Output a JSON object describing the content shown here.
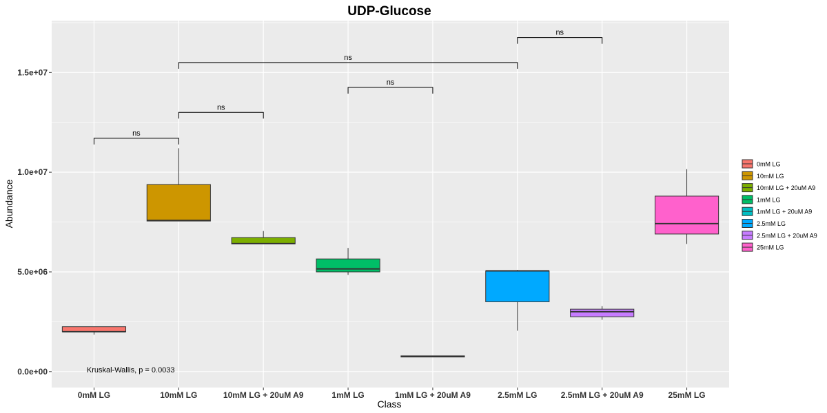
{
  "chart_data": {
    "type": "boxplot",
    "title": "UDP-Glucose",
    "xlabel": "Class",
    "ylabel": "Abundance",
    "ylim": [
      -800000,
      17600000
    ],
    "yticks": [
      0,
      5000000,
      10000000,
      15000000
    ],
    "ytick_labels": [
      "0.0e+00",
      "5.0e+06",
      "1.0e+07",
      "1.5e+07"
    ],
    "grid": true,
    "legend_position": "right",
    "categories": [
      "0mM LG",
      "10mM LG",
      "10mM LG + 20uM A9",
      "1mM LG",
      "1mM LG + 20uM A9",
      "2.5mM LG",
      "2.5mM LG + 20uM A9",
      "25mM LG"
    ],
    "boxes": [
      {
        "name": "0mM LG",
        "color": "#F8766D",
        "min": 1850000,
        "q1": 2000000,
        "median": 2000000,
        "q3": 2250000,
        "max": 2250000
      },
      {
        "name": "10mM LG",
        "color": "#CD9600",
        "min": 7550000,
        "q1": 7550000,
        "median": 7580000,
        "q3": 9380000,
        "max": 11200000
      },
      {
        "name": "10mM LG + 20uM A9",
        "color": "#7CAE00",
        "min": 6400000,
        "q1": 6400000,
        "median": 6420000,
        "q3": 6720000,
        "max": 7050000
      },
      {
        "name": "1mM LG",
        "color": "#00BE67",
        "min": 4850000,
        "q1": 5000000,
        "median": 5150000,
        "q3": 5650000,
        "max": 6200000
      },
      {
        "name": "1mM LG + 20uM A9",
        "color": "#00BFC4",
        "min": 730000,
        "q1": 730000,
        "median": 760000,
        "q3": 790000,
        "max": 790000
      },
      {
        "name": "2.5mM LG",
        "color": "#00A9FF",
        "min": 2050000,
        "q1": 3500000,
        "median": 5050000,
        "q3": 5050000,
        "max": 5100000
      },
      {
        "name": "2.5mM LG + 20uM A9",
        "color": "#C77CFF",
        "min": 2600000,
        "q1": 2750000,
        "median": 3000000,
        "q3": 3130000,
        "max": 3280000
      },
      {
        "name": "25mM LG",
        "color": "#FF61CC",
        "min": 6400000,
        "q1": 6900000,
        "median": 7420000,
        "q3": 8800000,
        "max": 10150000
      }
    ],
    "comparisons": [
      {
        "from": 0,
        "to": 1,
        "y": 11700000,
        "label": "ns"
      },
      {
        "from": 1,
        "to": 2,
        "y": 13000000,
        "label": "ns"
      },
      {
        "from": 3,
        "to": 4,
        "y": 14250000,
        "label": "ns"
      },
      {
        "from": 1,
        "to": 5,
        "y": 15500000,
        "label": "ns"
      },
      {
        "from": 5,
        "to": 6,
        "y": 16750000,
        "label": "ns"
      }
    ],
    "annotation": "Kruskal-Wallis, p = 0.0033",
    "annotation_position": {
      "category": 0.3,
      "y": 100000
    }
  }
}
